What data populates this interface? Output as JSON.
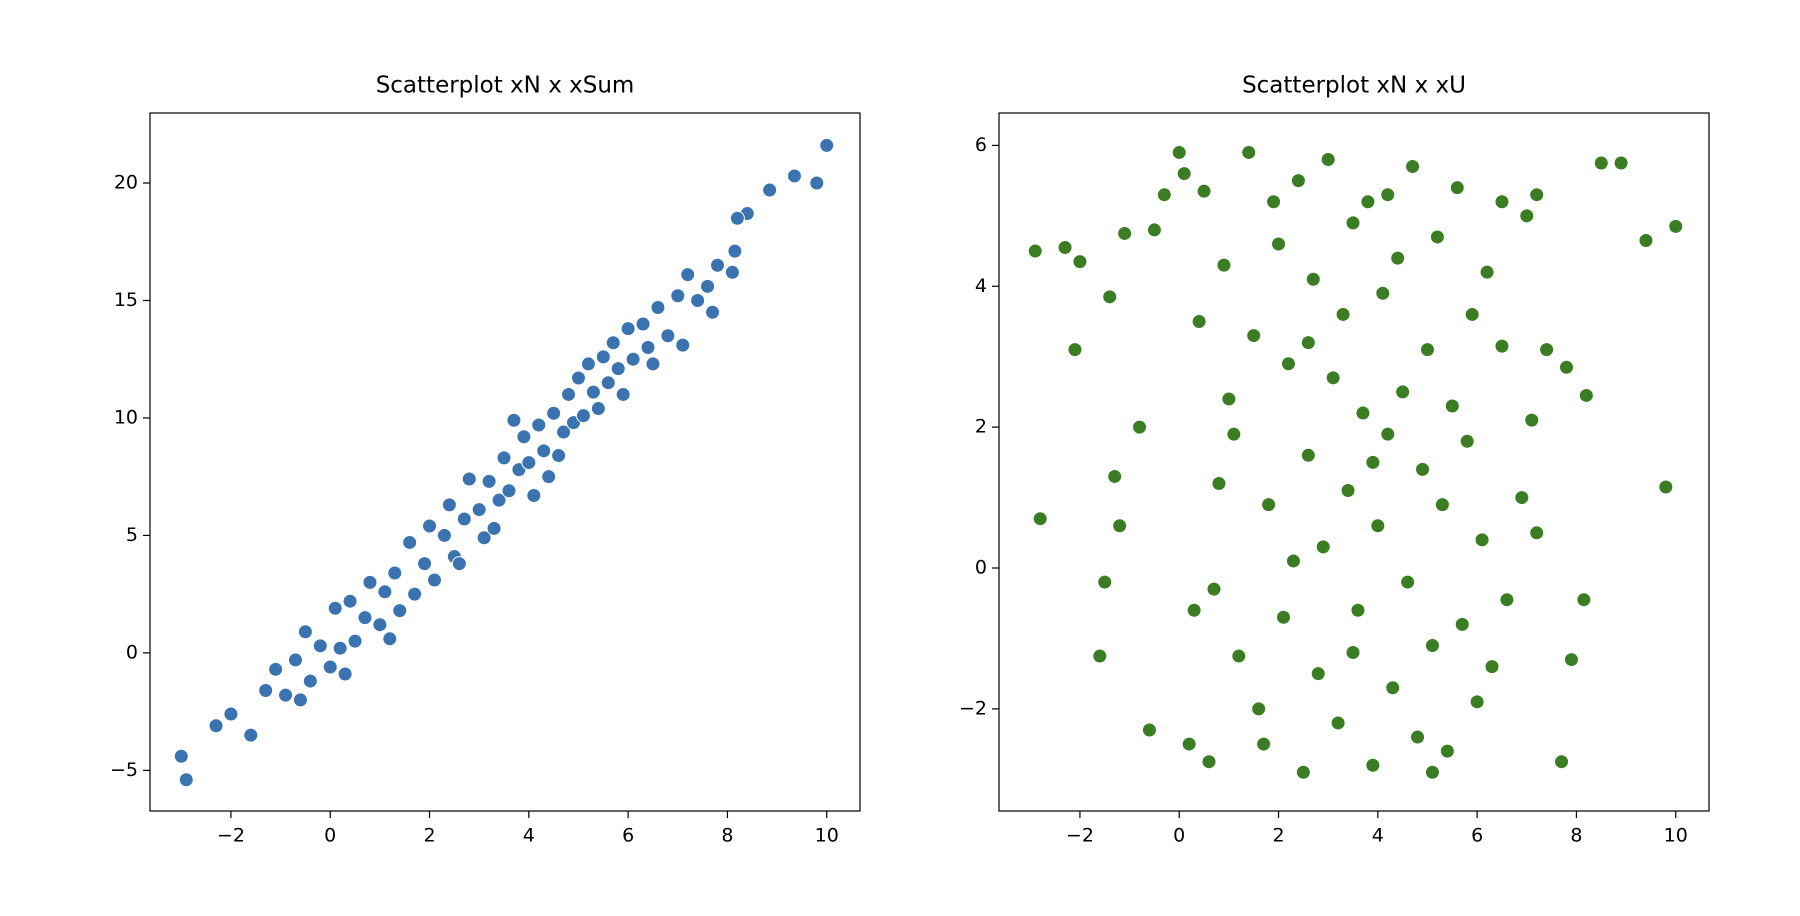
{
  "chart_data": [
    {
      "type": "scatter",
      "title": "Scatterplot xN x xSum",
      "color": "#3a73b0",
      "x": [
        -3,
        -2.9,
        10,
        9.8,
        9.35,
        8.85,
        8.4,
        8.2,
        8.15,
        8.1,
        7.7,
        -1.6,
        -2.3,
        -2,
        -1.3,
        -1.1,
        -0.9,
        -0.7,
        -0.5,
        -0.4,
        -0.2,
        0,
        0.1,
        0.2,
        0.4,
        0.5,
        0.7,
        0.8,
        1,
        1.1,
        1.3,
        1.4,
        1.6,
        1.7,
        1.9,
        2,
        2.1,
        2.3,
        2.4,
        2.5,
        2.7,
        2.8,
        3,
        3.1,
        3.2,
        3.4,
        3.5,
        3.6,
        3.8,
        3.9,
        4,
        4.1,
        4.2,
        4.3,
        4.5,
        4.6,
        4.7,
        4.8,
        4.9,
        5,
        5.1,
        5.2,
        5.3,
        5.4,
        5.5,
        5.6,
        5.7,
        5.8,
        5.9,
        6,
        6.1,
        6.3,
        6.4,
        6.5,
        6.6,
        6.8,
        7,
        7.1,
        7.2,
        7.4,
        7.6,
        7.8,
        0.3,
        -0.6,
        1.2,
        2.6,
        3.3,
        3.7,
        4.4
      ],
      "values": [
        -4.4,
        -5.4,
        21.6,
        20,
        20.3,
        19.7,
        18.7,
        18.5,
        17.1,
        16.2,
        14.5,
        -3.5,
        -3.1,
        -2.6,
        -1.6,
        -0.7,
        -1.8,
        -0.3,
        0.9,
        -1.2,
        0.3,
        -0.6,
        1.9,
        0.2,
        2.2,
        0.5,
        1.5,
        3,
        1.2,
        2.6,
        3.4,
        1.8,
        4.7,
        2.5,
        3.8,
        5.4,
        3.1,
        5,
        6.3,
        4.1,
        5.7,
        7.4,
        6.1,
        4.9,
        7.3,
        6.5,
        8.3,
        6.9,
        7.8,
        9.2,
        8.1,
        6.7,
        9.7,
        8.6,
        10.2,
        8.4,
        9.4,
        11,
        9.8,
        11.7,
        10.1,
        12.3,
        11.1,
        10.4,
        12.6,
        11.5,
        13.2,
        12.1,
        11,
        13.8,
        12.5,
        14,
        13,
        12.3,
        14.7,
        13.5,
        15.2,
        13.1,
        16.1,
        15,
        15.6,
        16.5,
        -0.9,
        -2,
        0.6,
        3.8,
        5.3,
        9.9,
        7.5
      ],
      "xlim": [
        -3.63,
        10.67
      ],
      "ylim": [
        -6.73,
        22.98
      ],
      "xticks": [
        {
          "value": -2,
          "label": "−2"
        },
        0,
        2,
        4,
        6,
        8,
        10
      ],
      "yticks": [
        {
          "value": -5,
          "label": "−5"
        },
        0,
        5,
        10,
        15,
        20
      ]
    },
    {
      "type": "scatter",
      "title": "Scatterplot xN x xU",
      "color": "#3a7d22",
      "x": [
        -2.9,
        -2.3,
        -2,
        -2.1,
        -2.8,
        10,
        9.4,
        9.8,
        8.9,
        8.5,
        8.15,
        7.9,
        8.2,
        7.7,
        7.8,
        7.4,
        7.2,
        7.1,
        7,
        7.2,
        6.9,
        6.6,
        6.5,
        6.3,
        6.5,
        -1.6,
        -1.5,
        -1.2,
        -1.3,
        -1.4,
        -1.1,
        -0.8,
        -0.6,
        -0.3,
        -0.5,
        0,
        0.1,
        0.5,
        0.3,
        0.2,
        0.6,
        0.8,
        1,
        1.2,
        1.4,
        1.5,
        1.7,
        1.8,
        2,
        2.1,
        2.2,
        2.4,
        2.5,
        2.6,
        2.7,
        2.8,
        2.9,
        3,
        3.1,
        3.2,
        3.3,
        3.4,
        3.5,
        3.6,
        3.7,
        3.8,
        3.9,
        4,
        4.1,
        4.2,
        4.3,
        4.4,
        4.5,
        4.6,
        4.7,
        4.8,
        4.9,
        5,
        5.1,
        5.2,
        5.3,
        5.4,
        5.5,
        5.6,
        5.7,
        5.8,
        5.9,
        6,
        6.1,
        6.2,
        0.4,
        0.7,
        1.1,
        1.6,
        1.9,
        2.3,
        3.5,
        4.2,
        5.1,
        0.9,
        2.6,
        3.9
      ],
      "values": [
        4.5,
        4.55,
        4.35,
        3.1,
        0.7,
        4.85,
        4.65,
        1.15,
        5.75,
        5.75,
        -0.45,
        -1.3,
        2.45,
        -2.75,
        2.85,
        3.1,
        0.5,
        2.1,
        5,
        5.3,
        1,
        -0.45,
        3.15,
        -1.4,
        5.2,
        -1.25,
        -0.2,
        0.6,
        1.3,
        3.85,
        4.75,
        2,
        -2.3,
        5.3,
        4.8,
        5.9,
        5.6,
        5.35,
        -0.6,
        -2.5,
        -2.75,
        1.2,
        2.4,
        -1.25,
        5.9,
        3.3,
        -2.5,
        0.9,
        4.6,
        -0.7,
        2.9,
        5.5,
        -2.9,
        1.6,
        4.1,
        -1.5,
        0.3,
        5.8,
        2.7,
        -2.2,
        3.6,
        1.1,
        4.9,
        -0.6,
        2.2,
        5.2,
        -2.8,
        0.6,
        3.9,
        1.9,
        -1.7,
        4.4,
        2.5,
        -0.2,
        5.7,
        -2.4,
        1.4,
        3.1,
        -1.1,
        4.7,
        0.9,
        -2.6,
        2.3,
        5.4,
        -0.8,
        1.8,
        3.6,
        -1.9,
        0.4,
        4.2,
        3.5,
        -0.3,
        1.9,
        -2,
        5.2,
        0.1,
        -1.2,
        5.3,
        -2.9,
        4.3,
        3.2,
        1.5
      ],
      "xlim": [
        -3.63,
        10.67
      ],
      "ylim": [
        -3.45,
        6.46
      ],
      "xticks": [
        {
          "value": -2,
          "label": "−2"
        },
        0,
        2,
        4,
        6,
        8,
        10
      ],
      "yticks": [
        {
          "value": -2,
          "label": "−2"
        },
        0,
        2,
        4,
        6
      ]
    }
  ]
}
